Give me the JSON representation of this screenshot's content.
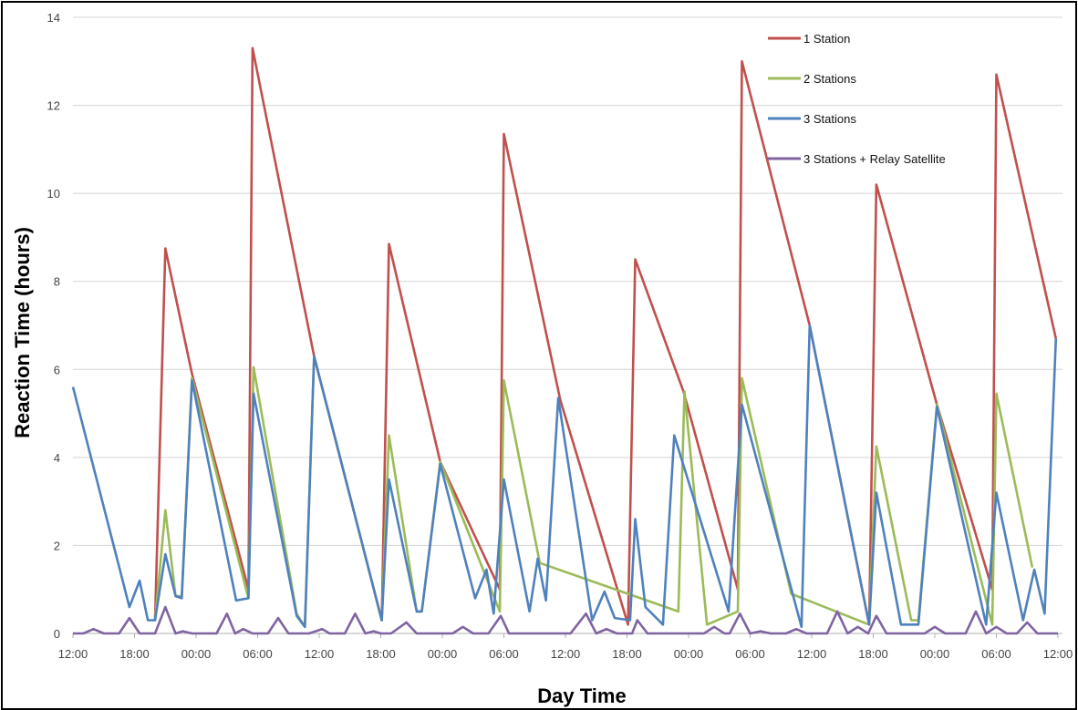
{
  "chart_data": {
    "type": "line",
    "title": "",
    "xlabel": "Day Time",
    "ylabel": "Reaction Time (hours)",
    "ylim": [
      0,
      14
    ],
    "yticks": [
      0,
      2,
      4,
      6,
      8,
      10,
      12,
      14
    ],
    "xlim": [
      0,
      96
    ],
    "xticks": [
      {
        "x": 0,
        "label": "12:00"
      },
      {
        "x": 6,
        "label": "18:00"
      },
      {
        "x": 12,
        "label": "00:00"
      },
      {
        "x": 18,
        "label": "06:00"
      },
      {
        "x": 24,
        "label": "12:00"
      },
      {
        "x": 30,
        "label": "18:00"
      },
      {
        "x": 36,
        "label": "00:00"
      },
      {
        "x": 42,
        "label": "06:00"
      },
      {
        "x": 48,
        "label": "12:00"
      },
      {
        "x": 54,
        "label": "18:00"
      },
      {
        "x": 60,
        "label": "00:00"
      },
      {
        "x": 66,
        "label": "06:00"
      },
      {
        "x": 72,
        "label": "12:00"
      },
      {
        "x": 78,
        "label": "18:00"
      },
      {
        "x": 84,
        "label": "00:00"
      },
      {
        "x": 90,
        "label": "06:00"
      },
      {
        "x": 96,
        "label": "12:00"
      }
    ],
    "grid": "horizontal",
    "legend_position": "top-right",
    "series": [
      {
        "name": "1 Station",
        "color": "#c0504d",
        "points": [
          [
            8.0,
            0.3
          ],
          [
            9.0,
            8.75
          ],
          [
            11.6,
            5.9
          ],
          [
            17.1,
            1.0
          ],
          [
            17.5,
            13.3
          ],
          [
            23.5,
            6.3
          ],
          [
            30.1,
            0.3
          ],
          [
            30.8,
            8.85
          ],
          [
            35.8,
            3.9
          ],
          [
            41.6,
            1.0
          ],
          [
            42.0,
            11.35
          ],
          [
            47.5,
            5.3
          ],
          [
            54.1,
            0.2
          ],
          [
            54.8,
            8.5
          ],
          [
            59.5,
            5.5
          ],
          [
            64.8,
            1.0
          ],
          [
            65.2,
            13.0
          ],
          [
            71.8,
            7.0
          ],
          [
            77.6,
            0.2
          ],
          [
            78.3,
            10.2
          ],
          [
            84.2,
            5.2
          ],
          [
            89.6,
            1.0
          ],
          [
            90.0,
            12.7
          ],
          [
            95.8,
            6.7
          ]
        ]
      },
      {
        "name": "2 Stations",
        "color": "#9bbb59",
        "points": [
          [
            8.0,
            0.3
          ],
          [
            9.0,
            2.8
          ],
          [
            10.0,
            0.85
          ],
          [
            10.6,
            0.85
          ],
          [
            11.6,
            5.8
          ],
          [
            17.1,
            0.8
          ],
          [
            17.6,
            6.05
          ],
          [
            21.8,
            0.45
          ],
          [
            22.6,
            0.15
          ],
          [
            23.5,
            6.3
          ],
          [
            30.1,
            0.3
          ],
          [
            30.8,
            4.5
          ],
          [
            33.5,
            0.5
          ],
          [
            34.0,
            0.5
          ],
          [
            35.8,
            3.9
          ],
          [
            41.6,
            0.5
          ],
          [
            42.0,
            5.75
          ],
          [
            45.5,
            1.6
          ],
          [
            59.0,
            0.5
          ],
          [
            59.6,
            5.5
          ],
          [
            61.8,
            0.2
          ],
          [
            64.8,
            0.5
          ],
          [
            65.2,
            5.8
          ],
          [
            70.0,
            0.9
          ],
          [
            77.6,
            0.2
          ],
          [
            78.3,
            4.25
          ],
          [
            81.7,
            0.3
          ],
          [
            82.4,
            0.3
          ],
          [
            84.2,
            5.2
          ],
          [
            89.6,
            0.2
          ],
          [
            90.0,
            5.45
          ],
          [
            93.5,
            1.5
          ]
        ]
      },
      {
        "name": "3 Stations",
        "color": "#4f81bd",
        "points": [
          [
            0.0,
            5.6
          ],
          [
            5.5,
            0.6
          ],
          [
            6.5,
            1.2
          ],
          [
            7.3,
            0.3
          ],
          [
            8.0,
            0.3
          ],
          [
            9.0,
            1.8
          ],
          [
            10.0,
            0.85
          ],
          [
            10.6,
            0.8
          ],
          [
            11.6,
            5.75
          ],
          [
            15.9,
            0.75
          ],
          [
            17.1,
            0.8
          ],
          [
            17.6,
            5.45
          ],
          [
            21.8,
            0.4
          ],
          [
            22.6,
            0.15
          ],
          [
            23.5,
            6.3
          ],
          [
            30.1,
            0.3
          ],
          [
            30.8,
            3.5
          ],
          [
            33.5,
            0.5
          ],
          [
            34.0,
            0.5
          ],
          [
            35.8,
            3.85
          ],
          [
            39.2,
            0.8
          ],
          [
            40.3,
            1.45
          ],
          [
            41.0,
            0.45
          ],
          [
            42.0,
            3.5
          ],
          [
            44.5,
            0.5
          ],
          [
            45.3,
            1.7
          ],
          [
            46.1,
            0.75
          ],
          [
            47.3,
            5.35
          ],
          [
            50.6,
            0.3
          ],
          [
            51.8,
            0.95
          ],
          [
            52.8,
            0.35
          ],
          [
            54.3,
            0.3
          ],
          [
            54.8,
            2.6
          ],
          [
            55.8,
            0.6
          ],
          [
            57.5,
            0.2
          ],
          [
            58.6,
            4.5
          ],
          [
            63.9,
            0.5
          ],
          [
            65.2,
            5.2
          ],
          [
            71.0,
            0.15
          ],
          [
            71.8,
            7.0
          ],
          [
            77.6,
            0.2
          ],
          [
            78.3,
            3.2
          ],
          [
            80.7,
            0.2
          ],
          [
            82.4,
            0.2
          ],
          [
            84.2,
            5.15
          ],
          [
            89.0,
            0.2
          ],
          [
            90.0,
            3.2
          ],
          [
            92.6,
            0.3
          ],
          [
            93.7,
            1.45
          ],
          [
            94.7,
            0.45
          ],
          [
            95.8,
            6.7
          ]
        ]
      },
      {
        "name": "3 Stations + Relay Satellite",
        "color": "#8064a2",
        "points": [
          [
            0.0,
            0.0
          ],
          [
            1.0,
            0.0
          ],
          [
            2.0,
            0.1
          ],
          [
            3.0,
            0.0
          ],
          [
            4.5,
            0.0
          ],
          [
            5.5,
            0.35
          ],
          [
            6.5,
            0.0
          ],
          [
            7.5,
            0.0
          ],
          [
            8.0,
            0.0
          ],
          [
            9.0,
            0.6
          ],
          [
            10.0,
            0.0
          ],
          [
            10.7,
            0.05
          ],
          [
            11.6,
            0.0
          ],
          [
            13.0,
            0.0
          ],
          [
            14.0,
            0.0
          ],
          [
            15.0,
            0.45
          ],
          [
            15.8,
            0.0
          ],
          [
            16.6,
            0.1
          ],
          [
            17.5,
            0.0
          ],
          [
            19.0,
            0.0
          ],
          [
            20.0,
            0.35
          ],
          [
            21.0,
            0.0
          ],
          [
            23.0,
            0.0
          ],
          [
            24.3,
            0.1
          ],
          [
            25.0,
            0.0
          ],
          [
            26.5,
            0.0
          ],
          [
            27.5,
            0.45
          ],
          [
            28.5,
            0.0
          ],
          [
            29.3,
            0.05
          ],
          [
            30.0,
            0.0
          ],
          [
            31.0,
            0.0
          ],
          [
            32.5,
            0.25
          ],
          [
            33.5,
            0.0
          ],
          [
            37.0,
            0.0
          ],
          [
            38.0,
            0.15
          ],
          [
            39.0,
            0.0
          ],
          [
            40.5,
            0.0
          ],
          [
            41.7,
            0.4
          ],
          [
            42.5,
            0.0
          ],
          [
            48.5,
            0.0
          ],
          [
            50.0,
            0.45
          ],
          [
            51.0,
            0.0
          ],
          [
            52.0,
            0.1
          ],
          [
            53.0,
            0.0
          ],
          [
            54.5,
            0.0
          ],
          [
            55.0,
            0.3
          ],
          [
            56.0,
            0.0
          ],
          [
            60.0,
            0.0
          ],
          [
            61.5,
            0.0
          ],
          [
            62.5,
            0.15
          ],
          [
            63.5,
            0.0
          ],
          [
            64.0,
            0.0
          ],
          [
            65.0,
            0.45
          ],
          [
            66.0,
            0.0
          ],
          [
            67.0,
            0.05
          ],
          [
            68.0,
            0.0
          ],
          [
            69.5,
            0.0
          ],
          [
            70.5,
            0.1
          ],
          [
            71.5,
            0.0
          ],
          [
            73.5,
            0.0
          ],
          [
            74.5,
            0.5
          ],
          [
            75.5,
            0.0
          ],
          [
            76.5,
            0.15
          ],
          [
            77.5,
            0.0
          ],
          [
            78.3,
            0.4
          ],
          [
            79.3,
            0.0
          ],
          [
            81.0,
            0.0
          ],
          [
            83.0,
            0.0
          ],
          [
            84.0,
            0.15
          ],
          [
            85.0,
            0.0
          ],
          [
            87.0,
            0.0
          ],
          [
            88.0,
            0.5
          ],
          [
            89.0,
            0.0
          ],
          [
            90.0,
            0.15
          ],
          [
            91.0,
            0.0
          ],
          [
            92.0,
            0.0
          ],
          [
            93.0,
            0.25
          ],
          [
            94.0,
            0.0
          ],
          [
            96.0,
            0.0
          ]
        ]
      }
    ]
  }
}
